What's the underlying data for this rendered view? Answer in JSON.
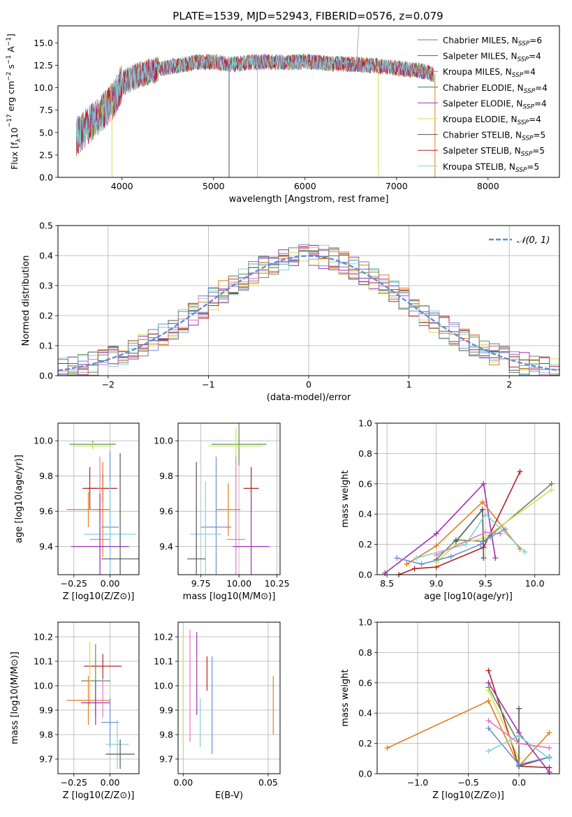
{
  "figure": {
    "title": "PLATE=1539, MJD=52943, FIBERID=0576, z=0.079"
  },
  "colors": {
    "series": [
      "#5a8f5a",
      "#9e2fb8",
      "#d4df4d",
      "#555555",
      "#b22222",
      "#7dd3d8",
      "#e87b1e",
      "#6a8fd8",
      "#e377c2",
      "#7f7f7f",
      "#2f7f4f",
      "#f0a0a0"
    ]
  },
  "chart_data": [
    {
      "id": "spectrum",
      "type": "line",
      "title": "PLATE=1539, MJD=52943, FIBERID=0576, z=0.079",
      "xlabel": "wavelength [Angstrom, rest frame]",
      "ylabel": "Flux [f_λ10^{-17} erg cm^{-2} s^{-1} A^{-1}]",
      "xlim": [
        3300,
        8780
      ],
      "ylim": [
        0,
        16.9
      ],
      "xticks": [
        "4000",
        "5000",
        "6000",
        "7000",
        "8000"
      ],
      "yticks": [
        "0.0",
        "2.5",
        "5.0",
        "7.5",
        "10.0",
        "12.5",
        "15.0"
      ],
      "legend_position": "right",
      "legend": [
        "Chabrier MILES, N_SSP=6",
        "Salpeter MILES, N_SSP=4",
        "Kroupa MILES, N_SSP=4",
        "Chabrier ELODIE, N_SSP=4",
        "Salpeter ELODIE, N_SSP=4",
        "Kroupa ELODIE, N_SSP=4",
        "Chabrier STELIB, N_SSP=5",
        "Salpeter STELIB, N_SSP=5",
        "Kroupa STELIB, N_SSP=5"
      ],
      "legend_colors": [
        "#5a8f5a",
        "#9e2fb8",
        "#e87b1e",
        "#2f7f4f",
        "#9e2fb8",
        "#d4df4d",
        "#555555",
        "#b22222",
        "#7dd3d8"
      ],
      "continuum": {
        "x": [
          3500,
          3700,
          3900,
          4000,
          4200,
          4500,
          4800,
          5000,
          5200,
          5500,
          5800,
          6000,
          6300,
          6600,
          7000,
          7300,
          7400
        ],
        "y": [
          4.5,
          6.5,
          8.5,
          10.5,
          11.5,
          12.3,
          12.8,
          12.9,
          12.6,
          12.9,
          12.8,
          12.9,
          12.7,
          12.6,
          12.2,
          11.8,
          11.5
        ]
      },
      "grid": false
    },
    {
      "id": "residuals",
      "type": "step",
      "xlabel": "(data-model)/error",
      "ylabel": "Normed distribution",
      "xlim": [
        -2.5,
        2.5
      ],
      "ylim": [
        0,
        0.5
      ],
      "xticks": [
        "−2",
        "−1",
        "0",
        "1",
        "2"
      ],
      "yticks": [
        "0.0",
        "0.1",
        "0.2",
        "0.3",
        "0.4",
        "0.5"
      ],
      "legend": [
        "𝒩(0, 1)"
      ],
      "legend_position": "top-right",
      "gaussian": {
        "mu": 0,
        "sigma": 1,
        "color": "#5b8fd6"
      },
      "bin_width": 0.1,
      "grid": true
    },
    {
      "id": "age-vs-Z",
      "type": "errorbar",
      "xlabel": "Z [log10(Z/Z⊙)]",
      "ylabel": "age  [log10(age/yr)]",
      "xlim": [
        -0.36,
        0.2
      ],
      "ylim": [
        9.24,
        10.1
      ],
      "xticks": [
        "−0.25",
        "0.00"
      ],
      "xtick_values": [
        -0.25,
        0.0
      ],
      "yticks": [
        "9.4",
        "9.6",
        "9.8",
        "10.0"
      ],
      "ytick_values": [
        9.4,
        9.6,
        9.8,
        10.0
      ],
      "points": [
        {
          "x": -0.12,
          "y": 9.98,
          "xerr": 0.16,
          "yerr": 0.02,
          "color": "#5a8f5a"
        },
        {
          "x": -0.12,
          "y": 9.97,
          "xerr": 0.14,
          "yerr": 0.02,
          "color": "#d4df4d"
        },
        {
          "x": -0.14,
          "y": 9.73,
          "xerr": 0.05,
          "yerr": 0.12,
          "color": "#b22222"
        },
        {
          "x": -0.05,
          "y": 9.73,
          "xerr": 0.1,
          "yerr": 0.08,
          "color": "#b22222"
        },
        {
          "x": -0.15,
          "y": 9.61,
          "xerr": 0.15,
          "yerr": 0.1,
          "color": "#e87b1e"
        },
        {
          "x": -0.05,
          "y": 9.61,
          "xerr": 0.05,
          "yerr": 0.27,
          "color": "#e87b1e"
        },
        {
          "x": 0.0,
          "y": 9.51,
          "xerr": 0.06,
          "yerr": 0.43,
          "color": "#6a8fd8"
        },
        {
          "x": 0.0,
          "y": 9.47,
          "xerr": 0.18,
          "yerr": 0.3,
          "color": "#7dd3d8"
        },
        {
          "x": -0.07,
          "y": 9.44,
          "xerr": 0.07,
          "yerr": 0.47,
          "color": "#e377c2"
        },
        {
          "x": -0.07,
          "y": 9.4,
          "xerr": 0.2,
          "yerr": 0.3,
          "color": "#9e2fb8"
        },
        {
          "x": 0.07,
          "y": 9.33,
          "xerr": 0.13,
          "yerr": 0.6,
          "color": "#555555"
        }
      ],
      "grid": true
    },
    {
      "id": "age-vs-mass",
      "type": "errorbar",
      "xlabel": "mass [log10(M/M⊙)]",
      "ylabel": "",
      "xlim": [
        9.6,
        10.27
      ],
      "ylim": [
        9.24,
        10.1
      ],
      "xticks": [
        "9.75",
        "10.00",
        "10.25"
      ],
      "xtick_values": [
        9.75,
        10.0,
        10.25
      ],
      "yticks": [
        "9.4",
        "9.6",
        "9.8",
        "10.0"
      ],
      "ytick_values": [
        9.4,
        9.6,
        9.8,
        10.0
      ],
      "points": [
        {
          "x": 10.0,
          "y": 9.98,
          "xerr": 0.18,
          "yerr": 0.12,
          "color": "#5a8f5a"
        },
        {
          "x": 9.98,
          "y": 9.97,
          "xerr": 0.18,
          "yerr": 0.1,
          "color": "#d4df4d"
        },
        {
          "x": 10.08,
          "y": 9.73,
          "xerr": 0.05,
          "yerr": 0.12,
          "color": "#b22222"
        },
        {
          "x": 9.93,
          "y": 9.61,
          "xerr": 0.08,
          "yerr": 0.15,
          "color": "#e87b1e"
        },
        {
          "x": 9.85,
          "y": 9.51,
          "xerr": 0.1,
          "yerr": 0.4,
          "color": "#6a8fd8"
        },
        {
          "x": 9.78,
          "y": 9.47,
          "xerr": 0.1,
          "yerr": 0.3,
          "color": "#7dd3d8"
        },
        {
          "x": 9.98,
          "y": 9.44,
          "xerr": 0.06,
          "yerr": 0.47,
          "color": "#e377c2"
        },
        {
          "x": 10.08,
          "y": 9.4,
          "xerr": 0.12,
          "yerr": 0.3,
          "color": "#9e2fb8"
        },
        {
          "x": 9.72,
          "y": 9.33,
          "xerr": 0.06,
          "yerr": 0.55,
          "color": "#555555"
        }
      ],
      "grid": true
    },
    {
      "id": "massweight-vs-age",
      "type": "line",
      "xlabel": "age  [log10(age/yr)]",
      "ylabel": "mass weight",
      "xlim": [
        8.4,
        10.25
      ],
      "ylim": [
        0,
        1
      ],
      "xticks": [
        "8.5",
        "9.0",
        "9.5",
        "10.0"
      ],
      "xtick_values": [
        8.5,
        9.0,
        9.5,
        10.0
      ],
      "yticks": [
        "0.0",
        "0.2",
        "0.4",
        "0.6",
        "0.8",
        "1.0"
      ],
      "ytick_values": [
        0,
        0.2,
        0.4,
        0.6,
        0.8,
        1.0
      ],
      "series": [
        {
          "color": "#9e2fb8",
          "x": [
            8.48,
            9.0,
            9.48,
            9.6
          ],
          "y": [
            0.01,
            0.27,
            0.6,
            0.11
          ]
        },
        {
          "color": "#e87b1e",
          "x": [
            8.7,
            9.0,
            9.47,
            9.85
          ],
          "y": [
            0.07,
            0.19,
            0.48,
            0.17
          ]
        },
        {
          "color": "#b22222",
          "x": [
            8.62,
            8.78,
            9.0,
            9.48,
            9.85
          ],
          "y": [
            0.0,
            0.04,
            0.05,
            0.18,
            0.68
          ]
        },
        {
          "color": "#5a8f5a",
          "x": [
            9.0,
            9.2,
            9.48,
            10.17
          ],
          "y": [
            0.1,
            0.23,
            0.22,
            0.6
          ]
        },
        {
          "color": "#d4df4d",
          "x": [
            9.0,
            9.2,
            9.48,
            10.17
          ],
          "y": [
            0.08,
            0.2,
            0.24,
            0.56
          ]
        },
        {
          "color": "#555555",
          "x": [
            9.2,
            9.47,
            9.48
          ],
          "y": [
            0.22,
            0.43,
            0.11
          ]
        },
        {
          "color": "#6a8fd8",
          "x": [
            8.6,
            8.85,
            9.15,
            9.45,
            9.55,
            9.7
          ],
          "y": [
            0.11,
            0.07,
            0.12,
            0.2,
            0.25,
            0.3
          ]
        },
        {
          "color": "#7dd3d8",
          "x": [
            8.8,
            9.3,
            9.5,
            9.9
          ],
          "y": [
            0.11,
            0.2,
            0.4,
            0.15
          ]
        },
        {
          "color": "#e377c2",
          "x": [
            9.0,
            9.5,
            9.65
          ],
          "y": [
            0.13,
            0.28,
            0.27
          ]
        }
      ],
      "grid": true
    },
    {
      "id": "mass-vs-Z",
      "type": "errorbar",
      "xlabel": "Z [log10(Z/Z⊙)]",
      "ylabel": "mass [log10(M/M⊙)]",
      "xlim": [
        -0.36,
        0.2
      ],
      "ylim": [
        9.64,
        10.26
      ],
      "xticks": [
        "−0.25",
        "0.00"
      ],
      "xtick_values": [
        -0.25,
        0.0
      ],
      "yticks": [
        "9.7",
        "9.8",
        "9.9",
        "10.0",
        "10.1",
        "10.2"
      ],
      "ytick_values": [
        9.7,
        9.8,
        9.9,
        10.0,
        10.1,
        10.2
      ],
      "points": [
        {
          "x": -0.05,
          "y": 10.08,
          "xerr": 0.13,
          "yerr": 0.05,
          "color": "#b22222"
        },
        {
          "x": -0.1,
          "y": 10.02,
          "xerr": 0.1,
          "yerr": 0.15,
          "color": "#5a8f5a"
        },
        {
          "x": -0.14,
          "y": 10.05,
          "xerr": 0.0,
          "yerr": 0.13,
          "color": "#d4df4d"
        },
        {
          "x": -0.15,
          "y": 9.94,
          "xerr": 0.15,
          "yerr": 0.1,
          "color": "#e87b1e"
        },
        {
          "x": -0.1,
          "y": 9.93,
          "xerr": 0.1,
          "yerr": 0.09,
          "color": "#9e2fb8"
        },
        {
          "x": -0.05,
          "y": 9.95,
          "xerr": 0.0,
          "yerr": 0.08,
          "color": "#e377c2"
        },
        {
          "x": 0.0,
          "y": 9.85,
          "xerr": 0.06,
          "yerr": 0.1,
          "color": "#6a8fd8"
        },
        {
          "x": 0.05,
          "y": 9.76,
          "xerr": 0.08,
          "yerr": 0.1,
          "color": "#7dd3d8"
        },
        {
          "x": 0.07,
          "y": 9.72,
          "xerr": 0.1,
          "yerr": 0.06,
          "color": "#555555"
        }
      ],
      "grid": true
    },
    {
      "id": "mass-vs-ebv",
      "type": "errorbar",
      "xlabel": "E(B-V)",
      "ylabel": "",
      "xlim": [
        -0.003,
        0.057
      ],
      "ylim": [
        9.64,
        10.26
      ],
      "xticks": [
        "0.00",
        "0.05"
      ],
      "xtick_values": [
        0.0,
        0.05
      ],
      "yticks": [
        "9.7",
        "9.8",
        "9.9",
        "10.0",
        "10.1",
        "10.2"
      ],
      "ytick_values": [
        9.7,
        9.8,
        9.9,
        10.0,
        10.1,
        10.2
      ],
      "points": [
        {
          "x": 0.0,
          "y": 9.98,
          "xerr": 0,
          "yerr": 0.24,
          "color": "#d4df4d"
        },
        {
          "x": 0.004,
          "y": 10.0,
          "xerr": 0,
          "yerr": 0.23,
          "color": "#e377c2"
        },
        {
          "x": 0.008,
          "y": 10.05,
          "xerr": 0,
          "yerr": 0.17,
          "color": "#9e2fb8"
        },
        {
          "x": 0.01,
          "y": 9.85,
          "xerr": 0,
          "yerr": 0.1,
          "color": "#7dd3d8"
        },
        {
          "x": 0.014,
          "y": 10.05,
          "xerr": 0,
          "yerr": 0.07,
          "color": "#b22222"
        },
        {
          "x": 0.017,
          "y": 9.92,
          "xerr": 0,
          "yerr": 0.2,
          "color": "#6a8fd8"
        },
        {
          "x": 0.053,
          "y": 9.92,
          "xerr": 0,
          "yerr": 0.12,
          "color": "#e87b1e"
        }
      ],
      "grid": true
    },
    {
      "id": "massweight-vs-Z",
      "type": "line",
      "xlabel": "Z [log10(Z/Z⊙)]",
      "ylabel": "mass weight",
      "xlim": [
        -1.4,
        0.4
      ],
      "ylim": [
        0,
        1
      ],
      "xticks": [
        "−1.0",
        "−0.5",
        "0.0"
      ],
      "xtick_values": [
        -1.0,
        -0.5,
        0.0
      ],
      "yticks": [
        "0.0",
        "0.2",
        "0.4",
        "0.6",
        "0.8",
        "1.0"
      ],
      "ytick_values": [
        0,
        0.2,
        0.4,
        0.6,
        0.8,
        1.0
      ],
      "series": [
        {
          "color": "#e87b1e",
          "x": [
            -1.3,
            -0.3,
            0.0,
            0.3
          ],
          "y": [
            0.17,
            0.48,
            0.05,
            0.27
          ]
        },
        {
          "color": "#b22222",
          "x": [
            -0.3,
            0.0,
            0.3
          ],
          "y": [
            0.68,
            0.05,
            0.04
          ]
        },
        {
          "color": "#9e2fb8",
          "x": [
            -0.3,
            0.0,
            0.3
          ],
          "y": [
            0.6,
            0.27,
            0.01
          ]
        },
        {
          "color": "#5a8f5a",
          "x": [
            -0.3,
            0.0
          ],
          "y": [
            0.57,
            0.2
          ]
        },
        {
          "color": "#d4df4d",
          "x": [
            -0.3,
            0.0
          ],
          "y": [
            0.55,
            0.1
          ]
        },
        {
          "color": "#555555",
          "x": [
            0.0,
            0.0,
            0.3
          ],
          "y": [
            0.43,
            0.05,
            0.11
          ]
        },
        {
          "color": "#6a8fd8",
          "x": [
            -0.3,
            0.0,
            0.3
          ],
          "y": [
            0.3,
            0.06,
            0.11
          ]
        },
        {
          "color": "#7dd3d8",
          "x": [
            -0.3,
            0.0,
            0.3
          ],
          "y": [
            0.15,
            0.25,
            0.1
          ]
        },
        {
          "color": "#e377c2",
          "x": [
            -0.3,
            0.0,
            0.3
          ],
          "y": [
            0.35,
            0.2,
            0.17
          ]
        }
      ],
      "grid": true
    }
  ]
}
